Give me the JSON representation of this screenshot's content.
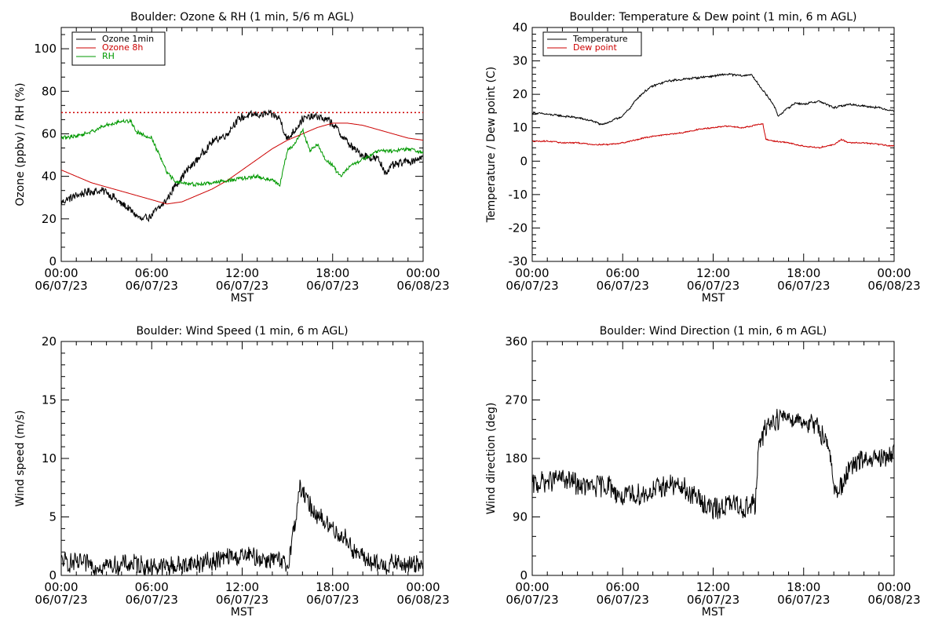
{
  "chart_data": [
    {
      "type": "line",
      "title": "Boulder: Ozone & RH (1 min, 5/6 m AGL)",
      "xlabel": "MST",
      "ylabel": "Ozone (ppbv) / RH (%)",
      "xlim": [
        0,
        24
      ],
      "ylim": [
        0,
        110
      ],
      "x_ticks": [
        0,
        6,
        12,
        18,
        24
      ],
      "x_tick_labels": [
        [
          "00:00",
          "06/07/23"
        ],
        [
          "06:00",
          "06/07/23"
        ],
        [
          "12:00",
          "06/07/23"
        ],
        [
          "18:00",
          "06/07/23"
        ],
        [
          "00:00",
          "06/08/23"
        ]
      ],
      "y_ticks": [
        0,
        20,
        40,
        60,
        80,
        100
      ],
      "y_tick_labels": [
        "0",
        "20",
        "40",
        "60",
        "80",
        "100"
      ],
      "legend_position": "top-left",
      "reference_lines": [
        {
          "y": 70,
          "color": "#cc0000",
          "style": "dotted"
        }
      ],
      "series": [
        {
          "name": "Ozone 1min",
          "color": "#000000",
          "noise": 2.5,
          "x": [
            0,
            1,
            2,
            3,
            4,
            4.8,
            5.4,
            6,
            6.5,
            7,
            7.5,
            8,
            9,
            10,
            11,
            11.5,
            12,
            13,
            14,
            14.5,
            15,
            15.5,
            16,
            17,
            17.5,
            18,
            18.5,
            19,
            19.5,
            20,
            21,
            21.5,
            22,
            23,
            24
          ],
          "y": [
            28,
            31,
            33,
            33,
            27,
            23,
            19,
            22,
            25,
            29,
            35,
            40,
            48,
            56,
            60,
            65,
            68,
            69,
            69,
            67,
            57,
            62,
            67,
            68,
            67,
            65,
            60,
            56,
            52,
            50,
            48,
            42,
            45,
            47,
            49
          ]
        },
        {
          "name": "Ozone 8h",
          "color": "#cc0000",
          "noise": 0,
          "x": [
            0,
            1,
            2,
            3,
            4,
            5,
            6,
            7,
            8,
            9,
            10,
            11,
            12,
            13,
            14,
            15,
            16,
            17,
            18,
            19,
            20,
            21,
            22,
            23,
            24
          ],
          "y": [
            43,
            40,
            37,
            35,
            33,
            31,
            29,
            27,
            28,
            31,
            34,
            38,
            43,
            48,
            53,
            57,
            60,
            63,
            65,
            65,
            64,
            62,
            60,
            58,
            57
          ]
        },
        {
          "name": "RH",
          "color": "#009900",
          "noise": 1.2,
          "x": [
            0,
            1,
            2,
            3,
            4,
            4.6,
            5,
            6,
            6.5,
            7,
            7.5,
            8,
            9,
            10,
            11,
            12,
            13,
            14,
            14.5,
            15,
            15.5,
            16,
            16.5,
            17,
            17.5,
            18,
            18.5,
            19,
            20,
            21,
            22,
            23,
            24
          ],
          "y": [
            58,
            59,
            61,
            64,
            66,
            66,
            61,
            58,
            50,
            42,
            38,
            37,
            36,
            37,
            38,
            39,
            40,
            38,
            36,
            52,
            55,
            62,
            52,
            55,
            48,
            45,
            40,
            44,
            48,
            52,
            52,
            53,
            51
          ]
        }
      ]
    },
    {
      "type": "line",
      "title": "Boulder: Temperature & Dew point (1 min, 6 m AGL)",
      "xlabel": "MST",
      "ylabel": "Temperature / Dew point (C)",
      "xlim": [
        0,
        24
      ],
      "ylim": [
        -30,
        40
      ],
      "x_ticks": [
        0,
        6,
        12,
        18,
        24
      ],
      "x_tick_labels": [
        [
          "00:00",
          "06/07/23"
        ],
        [
          "06:00",
          "06/07/23"
        ],
        [
          "12:00",
          "06/07/23"
        ],
        [
          "18:00",
          "06/07/23"
        ],
        [
          "00:00",
          "06/08/23"
        ]
      ],
      "y_ticks": [
        -30,
        -20,
        -10,
        0,
        10,
        20,
        30,
        40
      ],
      "y_tick_labels": [
        "-30",
        "-20",
        "-10",
        "0",
        "10",
        "20",
        "30",
        "40"
      ],
      "legend_position": "top-left",
      "series": [
        {
          "name": "Temperature",
          "color": "#000000",
          "noise": 0.4,
          "x": [
            0,
            1,
            2,
            3,
            4,
            4.5,
            5,
            6,
            6.5,
            7,
            7.5,
            8,
            9,
            10,
            11,
            12,
            13,
            14,
            14.5,
            15,
            15.5,
            16,
            16.3,
            17,
            17.5,
            18,
            19,
            20,
            21,
            22,
            23,
            24
          ],
          "y": [
            14.5,
            14,
            13.5,
            13,
            12,
            11,
            11.5,
            13.5,
            16,
            19,
            21,
            22.5,
            24,
            24.5,
            25,
            25.5,
            26,
            25.5,
            26,
            23,
            20,
            17,
            13.5,
            16,
            17.5,
            17,
            18,
            16,
            17,
            16.5,
            16,
            15
          ]
        },
        {
          "name": "Dew point",
          "color": "#cc0000",
          "noise": 0.25,
          "x": [
            0,
            1,
            2,
            3,
            4,
            5,
            6,
            7,
            8,
            9,
            10,
            11,
            12,
            13,
            14,
            15,
            15.3,
            15.5,
            16,
            17,
            18,
            19,
            20,
            20.5,
            21,
            22,
            23,
            24
          ],
          "y": [
            6,
            6,
            5.5,
            5.5,
            5,
            5,
            5.5,
            6.5,
            7.5,
            8,
            8.5,
            9.5,
            10,
            10.5,
            10,
            11,
            11,
            6.5,
            6,
            5.5,
            4.5,
            4,
            5,
            6.5,
            5.5,
            5.5,
            5,
            4.5
          ]
        }
      ]
    },
    {
      "type": "line",
      "title": "Boulder: Wind Speed (1 min, 6 m AGL)",
      "xlabel": "MST",
      "ylabel": "Wind speed (m/s)",
      "xlim": [
        0,
        24
      ],
      "ylim": [
        0,
        20
      ],
      "x_ticks": [
        0,
        6,
        12,
        18,
        24
      ],
      "x_tick_labels": [
        [
          "00:00",
          "06/07/23"
        ],
        [
          "06:00",
          "06/07/23"
        ],
        [
          "12:00",
          "06/07/23"
        ],
        [
          "18:00",
          "06/07/23"
        ],
        [
          "00:00",
          "06/08/23"
        ]
      ],
      "y_ticks": [
        0,
        5,
        10,
        15,
        20
      ],
      "y_tick_labels": [
        "0",
        "5",
        "10",
        "15",
        "20"
      ],
      "series": [
        {
          "name": "",
          "color": "#000000",
          "noise": 1.1,
          "x": [
            0,
            1,
            2,
            3,
            4,
            5,
            6,
            7,
            8,
            9,
            10,
            11,
            12,
            13,
            14,
            15,
            15.5,
            15.8,
            16.2,
            16.8,
            17.5,
            18,
            18.5,
            19,
            19.5,
            20,
            21,
            22,
            23,
            24
          ],
          "y": [
            1.2,
            1,
            0.9,
            0.8,
            0.9,
            1,
            0.8,
            0.8,
            0.9,
            1,
            1.2,
            1.5,
            1.6,
            1.5,
            1.4,
            0.8,
            4.5,
            7.5,
            6.5,
            5.5,
            4.5,
            4,
            3.5,
            3,
            2,
            1.5,
            0.8,
            1,
            0.8,
            1.3
          ]
        }
      ]
    },
    {
      "type": "line",
      "title": "Boulder: Wind Direction (1 min, 6 m AGL)",
      "xlabel": "MST",
      "ylabel": "Wind direction (deg)",
      "xlim": [
        0,
        24
      ],
      "ylim": [
        0,
        360
      ],
      "x_ticks": [
        0,
        6,
        12,
        18,
        24
      ],
      "x_tick_labels": [
        [
          "00:00",
          "06/07/23"
        ],
        [
          "06:00",
          "06/07/23"
        ],
        [
          "12:00",
          "06/07/23"
        ],
        [
          "18:00",
          "06/07/23"
        ],
        [
          "00:00",
          "06/08/23"
        ]
      ],
      "y_ticks": [
        0,
        90,
        180,
        270,
        360
      ],
      "y_tick_labels": [
        "0",
        "90",
        "180",
        "270",
        "360"
      ],
      "series": [
        {
          "name": "",
          "color": "#000000",
          "noise": 22,
          "x": [
            0,
            1,
            2,
            3,
            4,
            5,
            6,
            7,
            8,
            9,
            10,
            11,
            12,
            13,
            14,
            14.8,
            15,
            15.5,
            16,
            17,
            18,
            19,
            19.7,
            20,
            20.5,
            21,
            22,
            23,
            24
          ],
          "y": [
            140,
            145,
            150,
            140,
            135,
            140,
            120,
            125,
            130,
            140,
            135,
            120,
            100,
            110,
            105,
            110,
            190,
            230,
            240,
            245,
            240,
            225,
            200,
            130,
            140,
            160,
            180,
            175,
            190
          ]
        }
      ]
    }
  ]
}
